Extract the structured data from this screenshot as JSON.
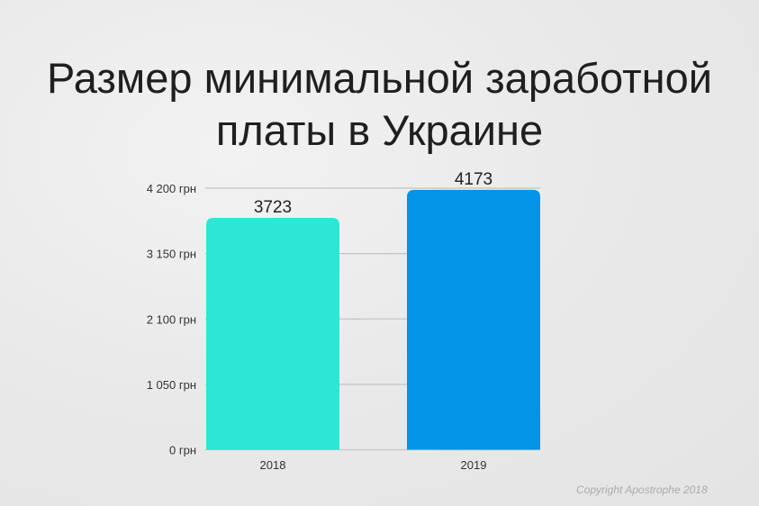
{
  "title_line1": "Размер минимальной заработной",
  "title_line2": "платы в Украине",
  "copyright": "Copyright Apostrophe 2018",
  "chart_data": {
    "type": "bar",
    "title": "Размер минимальной заработной платы в Украине",
    "categories": [
      "2018",
      "2019"
    ],
    "values": [
      3723,
      4173
    ],
    "data_labels": [
      "3723",
      "4173"
    ],
    "colors": [
      "#2ee6d6",
      "#0394e8"
    ],
    "ylim": [
      0,
      4200
    ],
    "yticks": [
      0,
      1050,
      2100,
      3150,
      4200
    ],
    "ytick_labels": [
      "0 грн",
      "1 050 грн",
      "2 100 грн",
      "3 150 грн",
      "4 200 грн"
    ],
    "grid": true,
    "legend": "none"
  }
}
